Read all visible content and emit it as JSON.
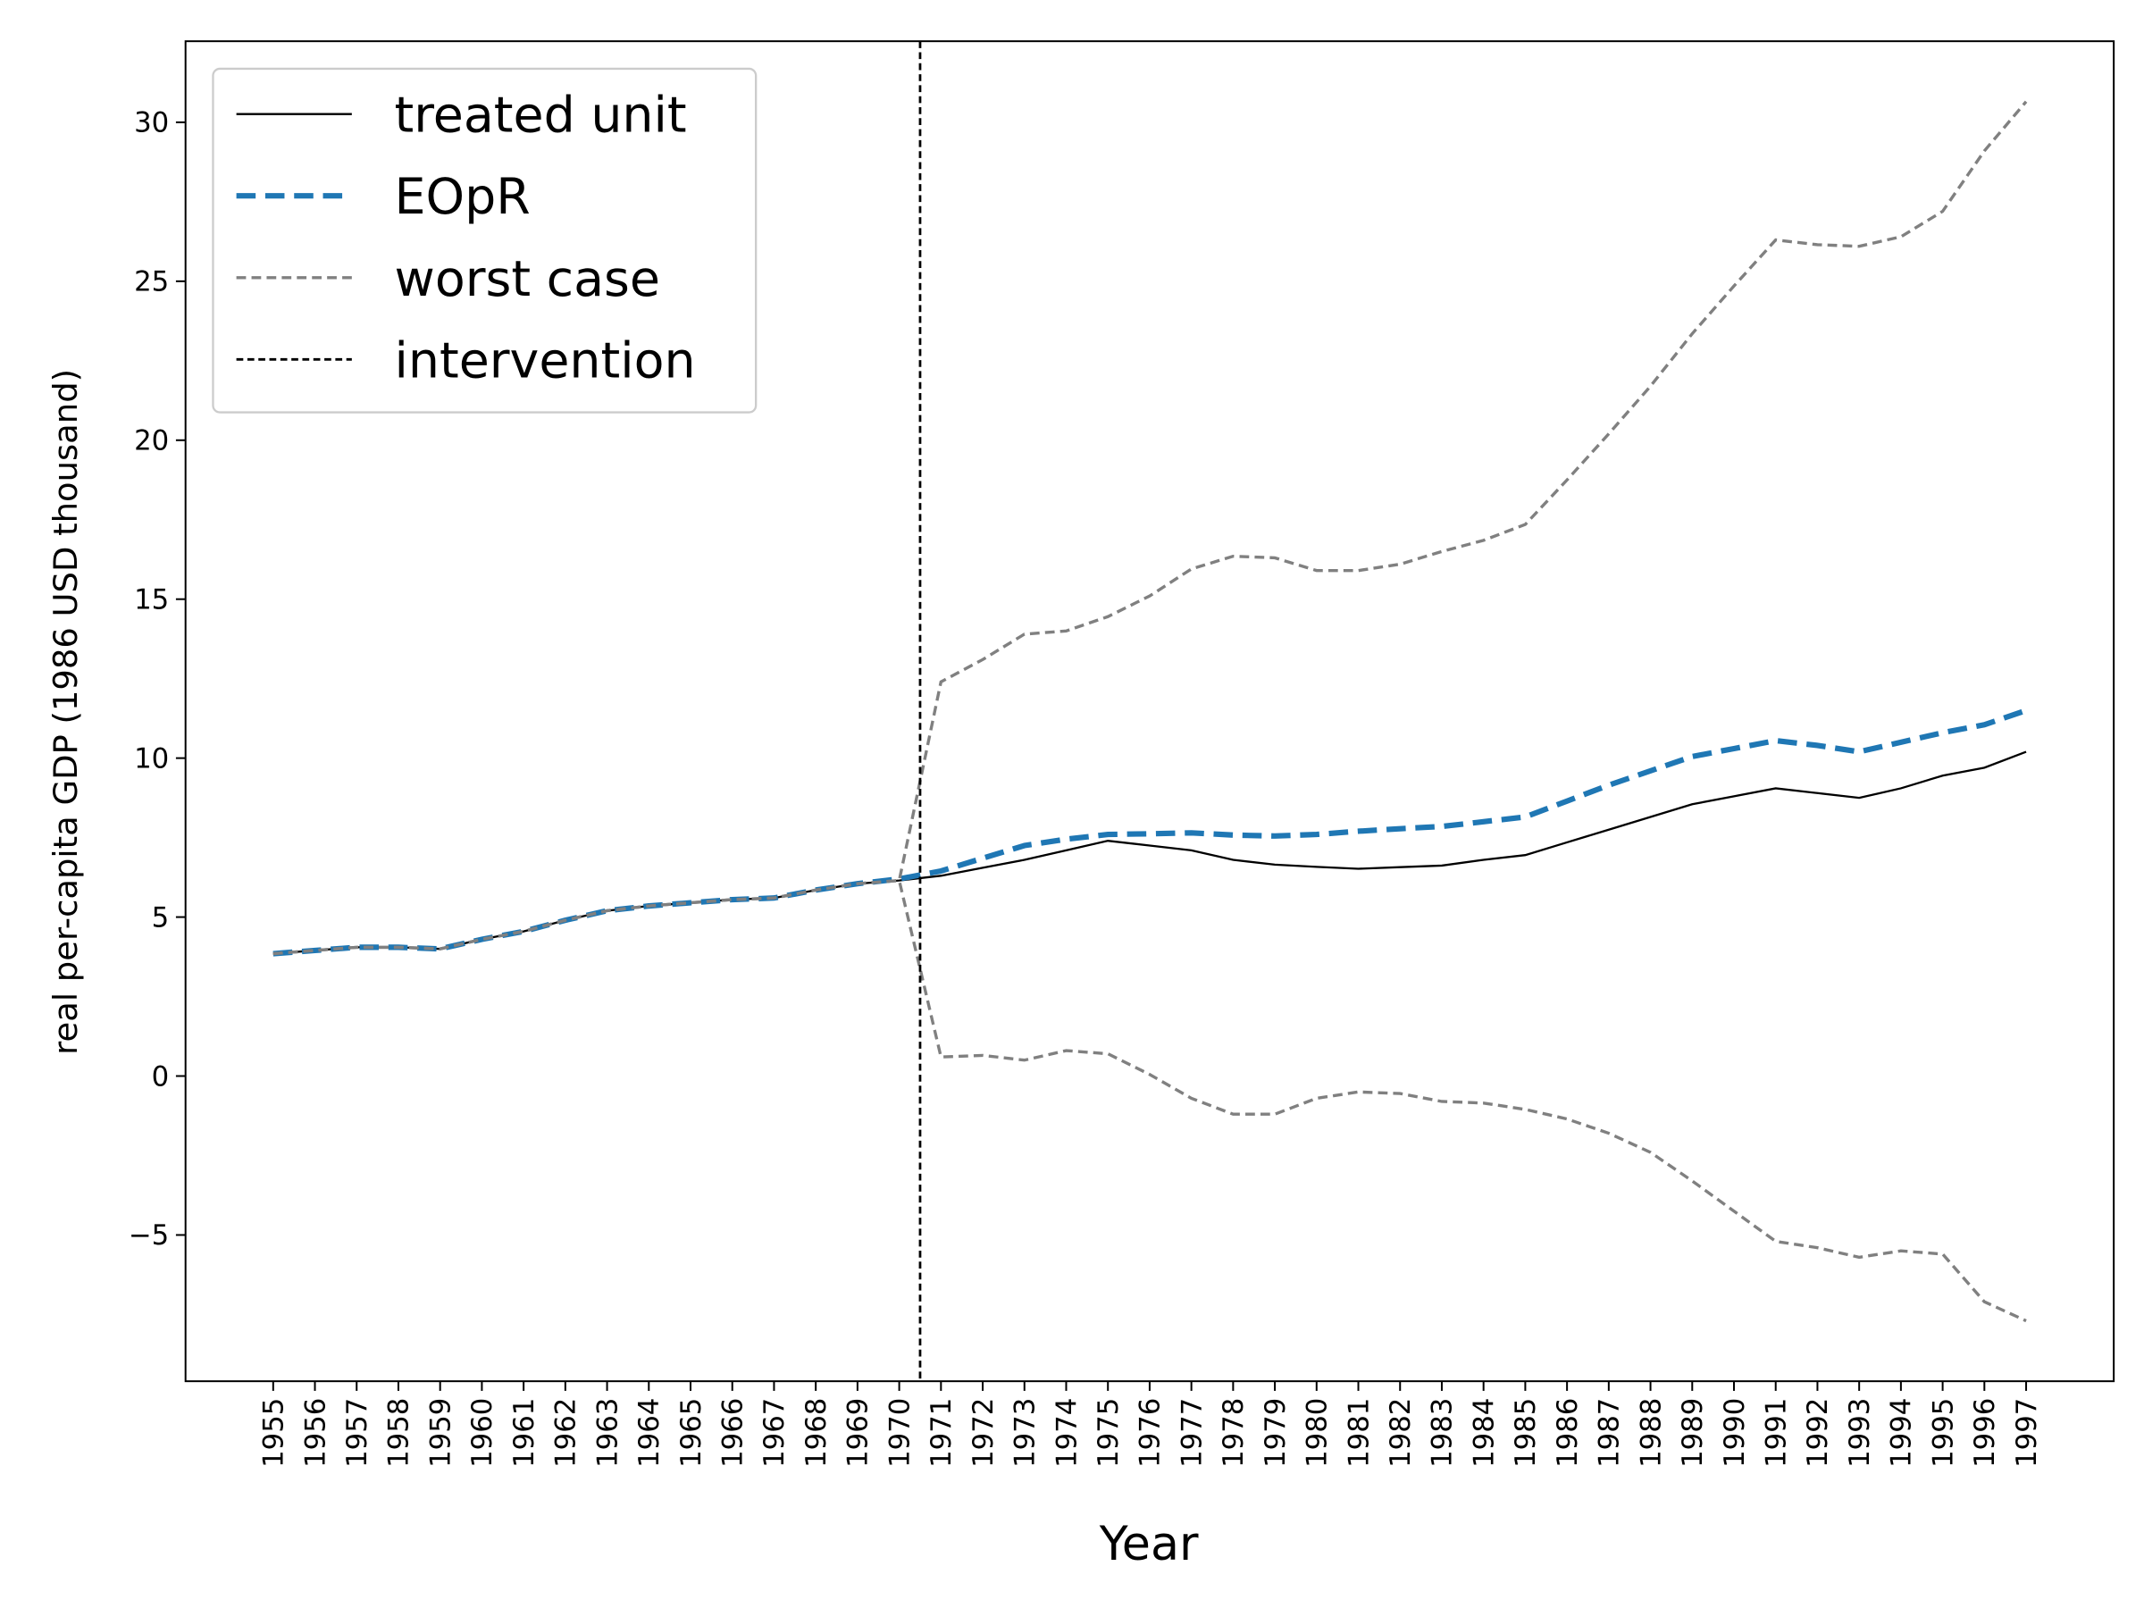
{
  "chart_data": {
    "type": "line",
    "xlabel": "Year",
    "ylabel": "real per-capita GDP (1986 USD thousand)",
    "x": [
      1955,
      1956,
      1957,
      1958,
      1959,
      1960,
      1961,
      1962,
      1963,
      1964,
      1965,
      1966,
      1967,
      1968,
      1969,
      1970,
      1971,
      1972,
      1973,
      1974,
      1975,
      1976,
      1977,
      1978,
      1979,
      1980,
      1981,
      1982,
      1983,
      1984,
      1985,
      1986,
      1987,
      1988,
      1989,
      1990,
      1991,
      1992,
      1993,
      1994,
      1995,
      1996,
      1997
    ],
    "xlim": [
      1952.9,
      1999.1
    ],
    "ylim": [
      -9.6,
      32.55
    ],
    "yticks": [
      {
        "value": -5,
        "label": "−5"
      },
      0,
      5,
      10,
      15,
      20,
      25,
      30
    ],
    "legend": "upper left",
    "series": [
      {
        "name": "treated unit",
        "color": "#000000",
        "style": "solid",
        "width": 1.5,
        "values": [
          3.85,
          3.95,
          4.05,
          4.05,
          4.0,
          4.3,
          4.55,
          4.9,
          5.2,
          5.35,
          5.45,
          5.55,
          5.6,
          5.85,
          6.05,
          6.15,
          6.3,
          6.55,
          6.8,
          7.1,
          7.4,
          7.25,
          7.1,
          6.8,
          6.65,
          6.58,
          6.52,
          6.57,
          6.62,
          6.8,
          6.95,
          7.35,
          7.75,
          8.15,
          8.55,
          8.8,
          9.05,
          8.9,
          8.75,
          9.05,
          9.45,
          9.7,
          10.2
        ]
      },
      {
        "name": "EOpR",
        "color": "#1f77b4",
        "style": "dashed",
        "width": 4,
        "values": [
          3.85,
          3.95,
          4.05,
          4.05,
          4.0,
          4.3,
          4.55,
          4.9,
          5.2,
          5.35,
          5.45,
          5.55,
          5.6,
          5.85,
          6.05,
          6.2,
          6.45,
          6.85,
          7.25,
          7.45,
          7.6,
          7.62,
          7.65,
          7.58,
          7.55,
          7.6,
          7.7,
          7.78,
          7.85,
          8.0,
          8.15,
          8.65,
          9.15,
          9.6,
          10.05,
          10.3,
          10.55,
          10.4,
          10.2,
          10.5,
          10.8,
          11.05,
          11.5
        ]
      },
      {
        "name": "worst case",
        "color": "#808080",
        "style": "dashed",
        "width": 2.2,
        "values": [
          3.85,
          3.95,
          4.05,
          4.05,
          4.0,
          4.3,
          4.55,
          4.9,
          5.2,
          5.35,
          5.45,
          5.55,
          5.6,
          5.85,
          6.05,
          6.15,
          12.4,
          13.1,
          13.9,
          14.0,
          14.45,
          15.1,
          15.95,
          16.35,
          16.3,
          15.9,
          15.9,
          16.1,
          16.5,
          16.85,
          17.35,
          18.75,
          20.2,
          21.7,
          23.35,
          24.85,
          26.3,
          26.15,
          26.1,
          26.4,
          27.2,
          29.1,
          30.65
        ],
        "lower": [
          3.85,
          3.95,
          4.05,
          4.05,
          4.0,
          4.3,
          4.55,
          4.9,
          5.2,
          5.35,
          5.45,
          5.55,
          5.6,
          5.85,
          6.05,
          6.15,
          0.6,
          0.65,
          0.5,
          0.8,
          0.7,
          0.05,
          -0.7,
          -1.2,
          -1.2,
          -0.7,
          -0.5,
          -0.55,
          -0.8,
          -0.85,
          -1.05,
          -1.35,
          -1.8,
          -2.4,
          -3.3,
          -4.25,
          -5.2,
          -5.4,
          -5.7,
          -5.5,
          -5.6,
          -7.1,
          -7.7
        ]
      }
    ],
    "vlines": [
      {
        "name": "intervention",
        "x": 1970.5,
        "color": "#000000"
      }
    ]
  }
}
